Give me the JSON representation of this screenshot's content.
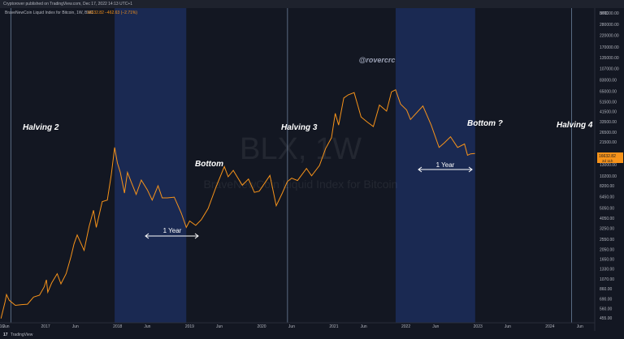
{
  "header": {
    "published_text": "Cryptorover published on TradingView.com, Dec 17, 2022 14:13 UTC+1"
  },
  "legend": {
    "symbol": "BraveNewCoin Liquid Index for Bitcoin, 1W, BNC",
    "price": "16632.82",
    "change": "−462.63 (−2.71%)"
  },
  "watermark": {
    "ticker": "BLX, 1W",
    "name": "BraveNewCoin Liquid Index for Bitcoin"
  },
  "handle": "@rovercrc",
  "footer": {
    "brand": "TradingView",
    "logo_text": "17"
  },
  "price_badge": {
    "value": "16632.82",
    "sub": "2d 11h"
  },
  "colors": {
    "background": "#131722",
    "line": "#f7931a",
    "shade": "#1c2d5a",
    "halving_line": "#6b7f9a",
    "axis_text": "#b2b5be"
  },
  "annotations": [
    {
      "id": "halving-2",
      "text": "Halving 2"
    },
    {
      "id": "bottom-1",
      "text": "Bottom"
    },
    {
      "id": "halving-3",
      "text": "Halving 3"
    },
    {
      "id": "bottom-2",
      "text": "Bottom ?"
    },
    {
      "id": "halving-4",
      "text": "Halving 4"
    }
  ],
  "one_year_labels": [
    "1 Year",
    "1 Year"
  ],
  "chart_data": {
    "type": "line",
    "currency": "BTC",
    "y_scale": "log",
    "ylim": [
      410,
      400000
    ],
    "xlim": [
      "2016-05-15",
      "2024-08-15"
    ],
    "x_ticks": [
      {
        "label": "16",
        "date": "2016-05-25"
      },
      {
        "label": "Jun",
        "date": "2016-06-15"
      },
      {
        "label": "2017",
        "date": "2017-01-01"
      },
      {
        "label": "Jun",
        "date": "2017-06-01"
      },
      {
        "label": "2018",
        "date": "2018-01-01"
      },
      {
        "label": "Jun",
        "date": "2018-06-01"
      },
      {
        "label": "2019",
        "date": "2019-01-01"
      },
      {
        "label": "Jun",
        "date": "2019-06-01"
      },
      {
        "label": "2020",
        "date": "2020-01-01"
      },
      {
        "label": "Jun",
        "date": "2020-06-01"
      },
      {
        "label": "2021",
        "date": "2021-01-01"
      },
      {
        "label": "Jun",
        "date": "2021-06-01"
      },
      {
        "label": "2022",
        "date": "2022-01-01"
      },
      {
        "label": "Jun",
        "date": "2022-06-01"
      },
      {
        "label": "2023",
        "date": "2023-01-01"
      },
      {
        "label": "Jun",
        "date": "2023-06-01"
      },
      {
        "label": "2024",
        "date": "2024-01-01"
      },
      {
        "label": "Jun",
        "date": "2024-06-01"
      }
    ],
    "y_ticks": [
      "360000.00",
      "280000.00",
      "220000.00",
      "170000.00",
      "135000.00",
      "107000.00",
      "83000.00",
      "65000.00",
      "51500.00",
      "41500.00",
      "33500.00",
      "26500.00",
      "21500.00",
      "13000.00",
      "10200.00",
      "8200.00",
      "6450.00",
      "5050.00",
      "4050.00",
      "3250.00",
      "2550.00",
      "2050.00",
      "1650.00",
      "1330.00",
      "1070.00",
      "860.00",
      "690.00",
      "560.00",
      "455.00"
    ],
    "halvings": [
      {
        "name": "Halving 2",
        "date": "2016-07-09"
      },
      {
        "name": "Halving 3",
        "date": "2020-05-11"
      },
      {
        "name": "Halving 4",
        "date": "2024-04-20"
      }
    ],
    "highlight_ranges": [
      {
        "from": "2017-12-17",
        "to": "2018-12-15"
      },
      {
        "from": "2021-11-10",
        "to": "2022-12-18"
      }
    ],
    "series": [
      {
        "points": [
          [
            "2016-05-20",
            450
          ],
          [
            "2016-06-10",
            650
          ],
          [
            "2016-06-17",
            760
          ],
          [
            "2016-07-01",
            670
          ],
          [
            "2016-08-01",
            600
          ],
          [
            "2016-09-01",
            610
          ],
          [
            "2016-10-01",
            615
          ],
          [
            "2016-11-01",
            720
          ],
          [
            "2016-12-01",
            750
          ],
          [
            "2016-12-25",
            900
          ],
          [
            "2017-01-05",
            1050
          ],
          [
            "2017-01-12",
            800
          ],
          [
            "2017-02-01",
            980
          ],
          [
            "2017-03-01",
            1200
          ],
          [
            "2017-03-20",
            960
          ],
          [
            "2017-04-15",
            1200
          ],
          [
            "2017-05-10",
            1750
          ],
          [
            "2017-05-25",
            2300
          ],
          [
            "2017-06-10",
            2800
          ],
          [
            "2017-07-15",
            2000
          ],
          [
            "2017-08-10",
            3400
          ],
          [
            "2017-09-01",
            4800
          ],
          [
            "2017-09-15",
            3300
          ],
          [
            "2017-10-15",
            5800
          ],
          [
            "2017-11-10",
            6000
          ],
          [
            "2017-11-30",
            10500
          ],
          [
            "2017-12-17",
            19000
          ],
          [
            "2017-12-31",
            13500
          ],
          [
            "2018-01-15",
            11000
          ],
          [
            "2018-02-05",
            7000
          ],
          [
            "2018-02-20",
            11000
          ],
          [
            "2018-03-10",
            9000
          ],
          [
            "2018-04-05",
            6800
          ],
          [
            "2018-05-01",
            9300
          ],
          [
            "2018-06-01",
            7500
          ],
          [
            "2018-06-25",
            6000
          ],
          [
            "2018-07-25",
            8200
          ],
          [
            "2018-08-15",
            6300
          ],
          [
            "2018-09-10",
            6300
          ],
          [
            "2018-10-15",
            6400
          ],
          [
            "2018-11-20",
            4500
          ],
          [
            "2018-12-15",
            3300
          ],
          [
            "2019-01-01",
            3800
          ],
          [
            "2019-02-01",
            3450
          ],
          [
            "2019-03-01",
            3900
          ],
          [
            "2019-04-05",
            5000
          ],
          [
            "2019-05-15",
            8000
          ],
          [
            "2019-06-26",
            12500
          ],
          [
            "2019-07-15",
            10000
          ],
          [
            "2019-08-10",
            11500
          ],
          [
            "2019-09-25",
            8300
          ],
          [
            "2019-10-26",
            9500
          ],
          [
            "2019-11-25",
            7100
          ],
          [
            "2019-12-20",
            7300
          ],
          [
            "2020-02-12",
            10300
          ],
          [
            "2020-03-15",
            5300
          ],
          [
            "2020-04-15",
            7000
          ],
          [
            "2020-05-10",
            9000
          ],
          [
            "2020-06-01",
            9700
          ],
          [
            "2020-07-01",
            9200
          ],
          [
            "2020-08-15",
            12000
          ],
          [
            "2020-09-10",
            10200
          ],
          [
            "2020-10-20",
            12800
          ],
          [
            "2020-11-20",
            18500
          ],
          [
            "2020-12-20",
            23500
          ],
          [
            "2021-01-08",
            40000
          ],
          [
            "2021-01-25",
            31000
          ],
          [
            "2021-02-20",
            56000
          ],
          [
            "2021-03-15",
            60000
          ],
          [
            "2021-04-14",
            63000
          ],
          [
            "2021-05-19",
            37000
          ],
          [
            "2021-06-20",
            33000
          ],
          [
            "2021-07-20",
            30000
          ],
          [
            "2021-08-20",
            48000
          ],
          [
            "2021-09-25",
            42000
          ],
          [
            "2021-10-20",
            64000
          ],
          [
            "2021-11-10",
            67000
          ],
          [
            "2021-12-05",
            49000
          ],
          [
            "2022-01-05",
            43000
          ],
          [
            "2022-01-24",
            35000
          ],
          [
            "2022-03-28",
            47000
          ],
          [
            "2022-05-09",
            31000
          ],
          [
            "2022-06-18",
            19000
          ],
          [
            "2022-07-15",
            21000
          ],
          [
            "2022-08-15",
            24000
          ],
          [
            "2022-09-20",
            19000
          ],
          [
            "2022-10-25",
            20500
          ],
          [
            "2022-11-09",
            16000
          ],
          [
            "2022-11-25",
            16500
          ],
          [
            "2022-12-17",
            16632.82
          ]
        ]
      }
    ]
  }
}
